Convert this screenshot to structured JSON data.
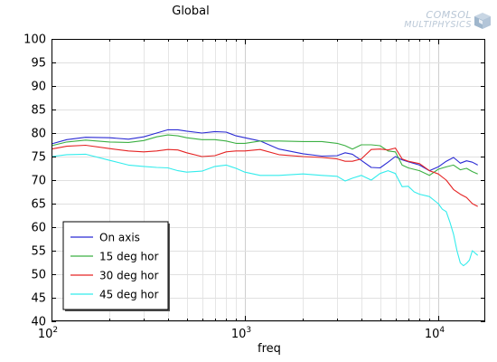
{
  "brand": {
    "logo_line1": "COMSOL",
    "logo_line2": "MULTIPHYSICS"
  },
  "chart_data": {
    "type": "line",
    "title": "Global",
    "xlabel": "freq",
    "ylabel": "",
    "xscale": "log",
    "xlim": [
      100,
      17500
    ],
    "ylim": [
      40,
      100
    ],
    "yticks": [
      40,
      45,
      50,
      55,
      60,
      65,
      70,
      75,
      80,
      85,
      90,
      95,
      100
    ],
    "xticks": [
      {
        "value": 100,
        "base": "10",
        "exp": "2"
      },
      {
        "value": 1000,
        "base": "10",
        "exp": "3"
      },
      {
        "value": 10000,
        "base": "10",
        "exp": "4"
      }
    ],
    "grid": true,
    "legend_position": "bottom-left",
    "series": [
      {
        "name": "On axis",
        "color": "#2b2bd4",
        "x": [
          100,
          120,
          150,
          200,
          250,
          300,
          350,
          400,
          450,
          500,
          600,
          700,
          800,
          900,
          1000,
          1200,
          1500,
          2000,
          2500,
          3000,
          3300,
          3600,
          4000,
          4500,
          5000,
          5500,
          6000,
          6500,
          7000,
          8000,
          9000,
          10000,
          11000,
          12000,
          13000,
          14000,
          15000,
          16000
        ],
        "y": [
          77.7,
          78.6,
          79.1,
          79.0,
          78.7,
          79.2,
          80.0,
          80.7,
          80.7,
          80.4,
          80.0,
          80.3,
          80.2,
          79.4,
          79.0,
          78.3,
          76.6,
          75.6,
          75.1,
          75.2,
          75.8,
          75.5,
          74.2,
          72.7,
          72.6,
          73.8,
          75.0,
          74.3,
          73.9,
          73.2,
          72.0,
          72.8,
          74.0,
          74.8,
          73.6,
          74.1,
          73.8,
          73.2
        ]
      },
      {
        "name": "15 deg hor",
        "color": "#3cb043",
        "x": [
          100,
          120,
          150,
          200,
          250,
          300,
          350,
          400,
          450,
          500,
          600,
          700,
          800,
          900,
          1000,
          1200,
          1500,
          2000,
          2500,
          3000,
          3300,
          3600,
          4000,
          4500,
          5000,
          5500,
          6000,
          6500,
          7000,
          8000,
          9000,
          10000,
          11000,
          12000,
          13000,
          14000,
          15000,
          16000
        ],
        "y": [
          77.3,
          78.1,
          78.5,
          78.1,
          78.0,
          78.4,
          79.2,
          79.6,
          79.4,
          79.0,
          78.6,
          78.6,
          78.3,
          77.8,
          77.8,
          78.3,
          78.3,
          78.2,
          78.2,
          77.8,
          77.3,
          76.6,
          77.5,
          77.5,
          77.3,
          76.2,
          76.0,
          73.2,
          72.6,
          72.0,
          71.0,
          72.3,
          72.8,
          73.2,
          72.2,
          72.5,
          71.8,
          71.3
        ]
      },
      {
        "name": "30 deg hor",
        "color": "#e52424",
        "x": [
          100,
          120,
          150,
          200,
          250,
          300,
          350,
          400,
          450,
          500,
          600,
          700,
          800,
          900,
          1000,
          1200,
          1500,
          2000,
          2500,
          3000,
          3300,
          3600,
          4000,
          4500,
          5000,
          5500,
          6000,
          6500,
          7000,
          8000,
          9000,
          10000,
          11000,
          12000,
          13000,
          14000,
          15000,
          16000
        ],
        "y": [
          76.6,
          77.2,
          77.4,
          76.7,
          76.2,
          76.0,
          76.2,
          76.5,
          76.4,
          75.8,
          75.0,
          75.2,
          76.0,
          76.2,
          76.2,
          76.5,
          75.4,
          75.0,
          74.8,
          74.5,
          74.0,
          74.0,
          74.5,
          76.5,
          76.6,
          76.4,
          76.8,
          74.5,
          74.0,
          73.5,
          72.0,
          71.3,
          70.0,
          68.0,
          67.0,
          66.3,
          65.0,
          64.4
        ]
      },
      {
        "name": "45 deg hor",
        "color": "#33ecec",
        "x": [
          100,
          120,
          150,
          200,
          250,
          300,
          350,
          400,
          450,
          500,
          600,
          700,
          800,
          900,
          1000,
          1200,
          1500,
          2000,
          2500,
          3000,
          3300,
          3600,
          4000,
          4500,
          5000,
          5500,
          6000,
          6500,
          7000,
          7500,
          8000,
          9000,
          10000,
          10500,
          11000,
          11500,
          12000,
          12500,
          13000,
          13500,
          14000,
          14500,
          15000,
          16000
        ],
        "y": [
          75.0,
          75.4,
          75.5,
          74.2,
          73.2,
          72.9,
          72.7,
          72.6,
          72.0,
          71.7,
          71.9,
          72.9,
          73.2,
          72.5,
          71.7,
          71.0,
          71.0,
          71.3,
          71.0,
          70.8,
          69.8,
          70.4,
          71.0,
          70.0,
          71.4,
          72.0,
          71.4,
          68.6,
          68.7,
          67.5,
          67.0,
          66.5,
          65.0,
          63.8,
          63.3,
          61.0,
          58.5,
          55.0,
          52.4,
          51.8,
          52.3,
          53.0,
          55.0,
          54.0
        ]
      }
    ]
  }
}
